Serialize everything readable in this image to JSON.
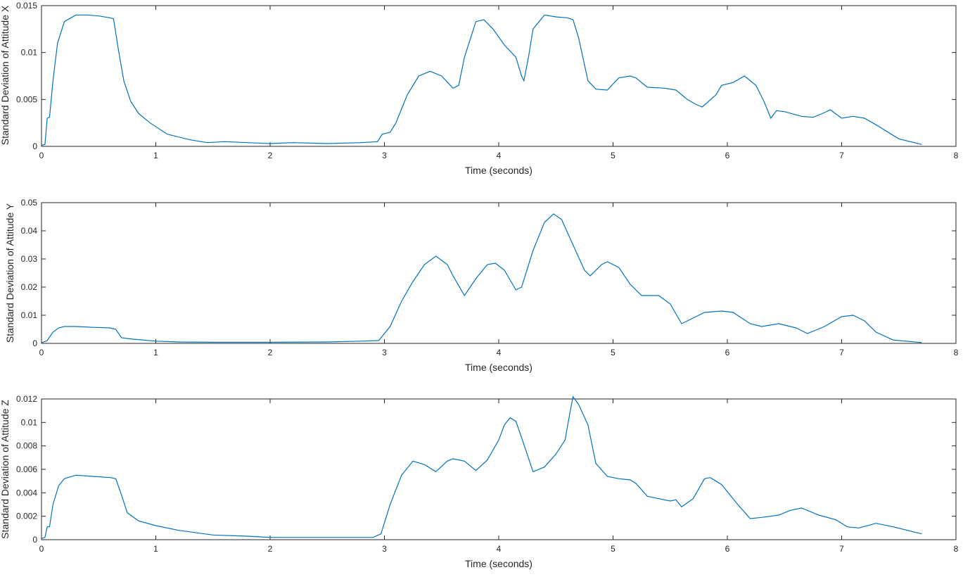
{
  "chart_data": [
    {
      "type": "line",
      "title": "",
      "xlabel": "Time (seconds)",
      "ylabel": "Standard Deviation of Attitude X",
      "xlim": [
        0,
        8
      ],
      "ylim": [
        0,
        0.015
      ],
      "x_ticks": [
        "0",
        "1",
        "2",
        "3",
        "4",
        "5",
        "6",
        "7",
        "8"
      ],
      "y_ticks": [
        "0",
        "0.005",
        "0.01",
        "0.015"
      ],
      "grid": false,
      "line_color": "#0072BD",
      "series": [
        {
          "x": [
            0,
            0.03,
            0.05,
            0.07,
            0.1,
            0.14,
            0.2,
            0.3,
            0.4,
            0.5,
            0.6,
            0.63,
            0.67,
            0.72,
            0.78,
            0.85,
            0.95,
            1.1,
            1.3,
            1.45,
            1.6,
            1.8,
            2.0,
            2.2,
            2.5,
            2.8,
            2.94,
            2.98,
            3.05,
            3.1,
            3.2,
            3.3,
            3.4,
            3.5,
            3.6,
            3.65,
            3.7,
            3.8,
            3.87,
            3.95,
            4.05,
            4.15,
            4.2,
            4.22,
            4.26,
            4.3,
            4.4,
            4.5,
            4.6,
            4.65,
            4.7,
            4.78,
            4.85,
            4.95,
            5.05,
            5.15,
            5.2,
            5.3,
            5.45,
            5.55,
            5.65,
            5.72,
            5.78,
            5.9,
            5.95,
            6.05,
            6.15,
            6.25,
            6.32,
            6.38,
            6.43,
            6.5,
            6.65,
            6.75,
            6.85,
            6.9,
            7.0,
            7.1,
            7.2,
            7.3,
            7.5,
            7.7
          ],
          "y": [
            0.0001,
            0.0002,
            0.003,
            0.0031,
            0.007,
            0.011,
            0.0133,
            0.014,
            0.014,
            0.0139,
            0.0137,
            0.0136,
            0.0105,
            0.007,
            0.0048,
            0.0035,
            0.0025,
            0.0013,
            0.0007,
            0.0004,
            0.0005,
            0.0004,
            0.0003,
            0.0004,
            0.0003,
            0.0004,
            0.0005,
            0.0013,
            0.0015,
            0.0025,
            0.0055,
            0.0075,
            0.008,
            0.0075,
            0.0062,
            0.0065,
            0.0095,
            0.0133,
            0.0135,
            0.0125,
            0.0108,
            0.0095,
            0.0075,
            0.007,
            0.0095,
            0.0125,
            0.014,
            0.0138,
            0.0137,
            0.0135,
            0.0115,
            0.007,
            0.0061,
            0.006,
            0.0073,
            0.0075,
            0.0073,
            0.0063,
            0.0062,
            0.006,
            0.005,
            0.0045,
            0.0042,
            0.0055,
            0.0065,
            0.0068,
            0.0075,
            0.0065,
            0.0048,
            0.003,
            0.0038,
            0.0037,
            0.0032,
            0.0031,
            0.0036,
            0.0039,
            0.003,
            0.0032,
            0.003,
            0.0023,
            0.0008,
            0.0002
          ]
        }
      ]
    },
    {
      "type": "line",
      "title": "",
      "xlabel": "Time (seconds)",
      "ylabel": "Standard Deviation of Attitude Y",
      "xlim": [
        0,
        8
      ],
      "ylim": [
        0,
        0.05
      ],
      "x_ticks": [
        "0",
        "1",
        "2",
        "3",
        "4",
        "5",
        "6",
        "7",
        "8"
      ],
      "y_ticks": [
        "0",
        "0.01",
        "0.02",
        "0.03",
        "0.04",
        "0.05"
      ],
      "grid": false,
      "line_color": "#0072BD",
      "series": [
        {
          "x": [
            0,
            0.05,
            0.1,
            0.15,
            0.2,
            0.3,
            0.45,
            0.6,
            0.65,
            0.7,
            0.8,
            1.0,
            1.2,
            1.5,
            2.0,
            2.5,
            2.8,
            2.95,
            3.05,
            3.15,
            3.25,
            3.35,
            3.45,
            3.55,
            3.6,
            3.7,
            3.8,
            3.9,
            3.97,
            4.05,
            4.15,
            4.2,
            4.3,
            4.4,
            4.48,
            4.55,
            4.65,
            4.75,
            4.8,
            4.9,
            4.95,
            5.05,
            5.15,
            5.25,
            5.4,
            5.5,
            5.6,
            5.7,
            5.8,
            5.95,
            6.05,
            6.2,
            6.3,
            6.45,
            6.6,
            6.7,
            6.85,
            7.0,
            7.1,
            7.2,
            7.3,
            7.45,
            7.7
          ],
          "y": [
            0.0002,
            0.001,
            0.004,
            0.0055,
            0.006,
            0.006,
            0.0057,
            0.0055,
            0.005,
            0.002,
            0.0015,
            0.0008,
            0.0005,
            0.0004,
            0.0004,
            0.0005,
            0.0008,
            0.001,
            0.006,
            0.015,
            0.022,
            0.028,
            0.031,
            0.028,
            0.024,
            0.017,
            0.023,
            0.028,
            0.0285,
            0.026,
            0.019,
            0.02,
            0.033,
            0.043,
            0.046,
            0.044,
            0.035,
            0.026,
            0.024,
            0.028,
            0.029,
            0.027,
            0.021,
            0.017,
            0.017,
            0.014,
            0.007,
            0.009,
            0.011,
            0.0115,
            0.011,
            0.007,
            0.006,
            0.007,
            0.0055,
            0.0035,
            0.006,
            0.0095,
            0.01,
            0.008,
            0.004,
            0.0012,
            0.0003
          ]
        }
      ]
    },
    {
      "type": "line",
      "title": "",
      "xlabel": "Time (seconds)",
      "ylabel": "Standard Deviation of Attitude Z",
      "xlim": [
        0,
        8
      ],
      "ylim": [
        0,
        0.012
      ],
      "x_ticks": [
        "0",
        "1",
        "2",
        "3",
        "4",
        "5",
        "6",
        "7",
        "8"
      ],
      "y_ticks": [
        "0",
        "0.002",
        "0.004",
        "0.006",
        "0.008",
        "0.01",
        "0.012"
      ],
      "grid": false,
      "line_color": "#0072BD",
      "series": [
        {
          "x": [
            0,
            0.03,
            0.05,
            0.07,
            0.1,
            0.15,
            0.2,
            0.3,
            0.45,
            0.6,
            0.65,
            0.7,
            0.75,
            0.85,
            1.0,
            1.2,
            1.5,
            1.8,
            2.0,
            2.3,
            2.6,
            2.9,
            2.97,
            3.05,
            3.15,
            3.25,
            3.35,
            3.45,
            3.55,
            3.6,
            3.7,
            3.8,
            3.9,
            4.0,
            4.05,
            4.1,
            4.15,
            4.2,
            4.3,
            4.4,
            4.5,
            4.58,
            4.62,
            4.65,
            4.7,
            4.78,
            4.85,
            4.95,
            5.05,
            5.15,
            5.2,
            5.3,
            5.4,
            5.5,
            5.55,
            5.6,
            5.7,
            5.8,
            5.85,
            5.95,
            6.05,
            6.1,
            6.2,
            6.3,
            6.45,
            6.55,
            6.65,
            6.8,
            6.95,
            7.05,
            7.15,
            7.3,
            7.45,
            7.7
          ],
          "y": [
            0.0001,
            0.0002,
            0.0011,
            0.0011,
            0.003,
            0.0046,
            0.0052,
            0.0055,
            0.0054,
            0.0053,
            0.0052,
            0.0038,
            0.0023,
            0.0016,
            0.0012,
            0.0008,
            0.0004,
            0.0003,
            0.0002,
            0.0002,
            0.0002,
            0.0002,
            0.0005,
            0.003,
            0.0055,
            0.0067,
            0.0064,
            0.0058,
            0.0067,
            0.0069,
            0.0067,
            0.0059,
            0.0068,
            0.0085,
            0.0098,
            0.0104,
            0.0101,
            0.0087,
            0.0058,
            0.0062,
            0.0073,
            0.0085,
            0.0107,
            0.0122,
            0.0115,
            0.0098,
            0.0065,
            0.0054,
            0.0052,
            0.0051,
            0.0048,
            0.0037,
            0.0035,
            0.0033,
            0.0034,
            0.0028,
            0.0035,
            0.0052,
            0.0053,
            0.0047,
            0.0035,
            0.0029,
            0.0018,
            0.0019,
            0.0021,
            0.0025,
            0.0027,
            0.0021,
            0.0017,
            0.0011,
            0.001,
            0.0014,
            0.0011,
            0.0005
          ]
        }
      ]
    }
  ]
}
